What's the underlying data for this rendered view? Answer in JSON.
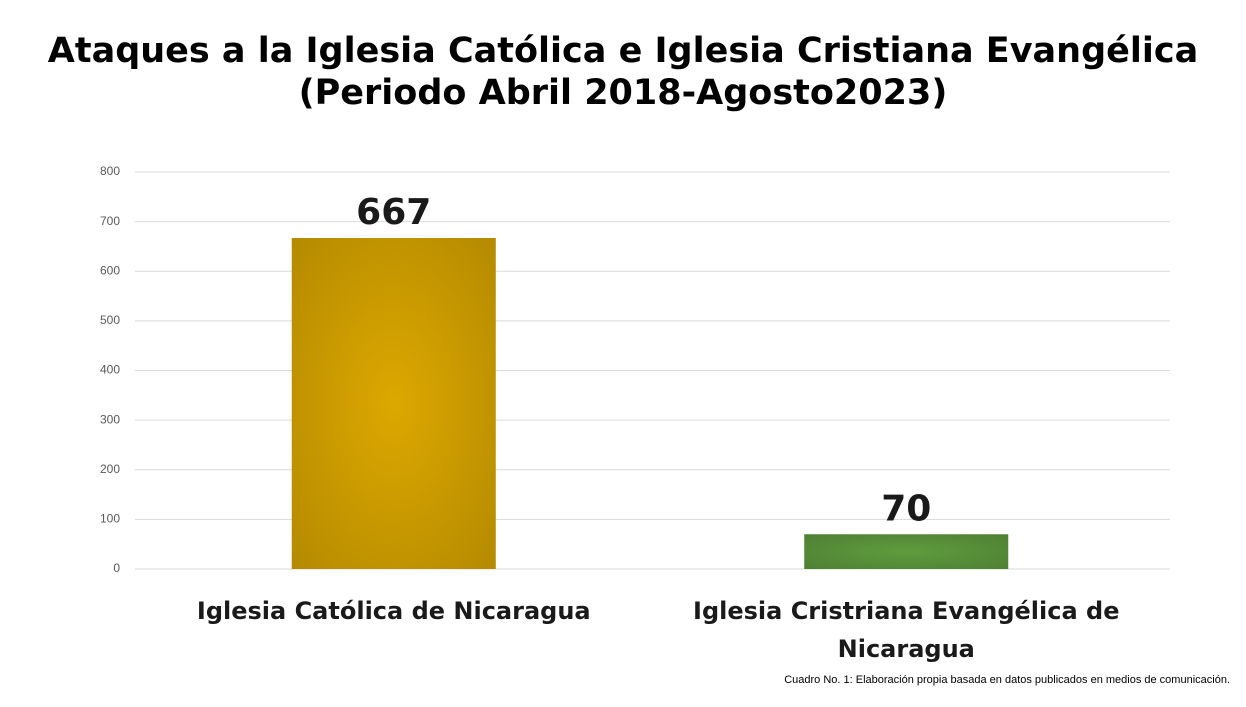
{
  "chart_data": {
    "type": "bar",
    "title": "Ataques a la Iglesia Católica e Iglesia Cristiana Evangélica",
    "subtitle": "(Periodo Abril 2018-Agosto2023)",
    "categories": [
      "Iglesia Católica de Nicaragua",
      "Iglesia Cristriana Evangélica de Nicaragua"
    ],
    "values": [
      667,
      70
    ],
    "colors": [
      "#dca800",
      "#5f9c3e"
    ],
    "ylim": [
      0,
      800
    ],
    "yticks": [
      0,
      100,
      200,
      300,
      400,
      500,
      600,
      700,
      800
    ],
    "grid": true,
    "note": "Cuadro No. 1: Elaboración propia basada en datos publicados en medios de comunicación."
  }
}
